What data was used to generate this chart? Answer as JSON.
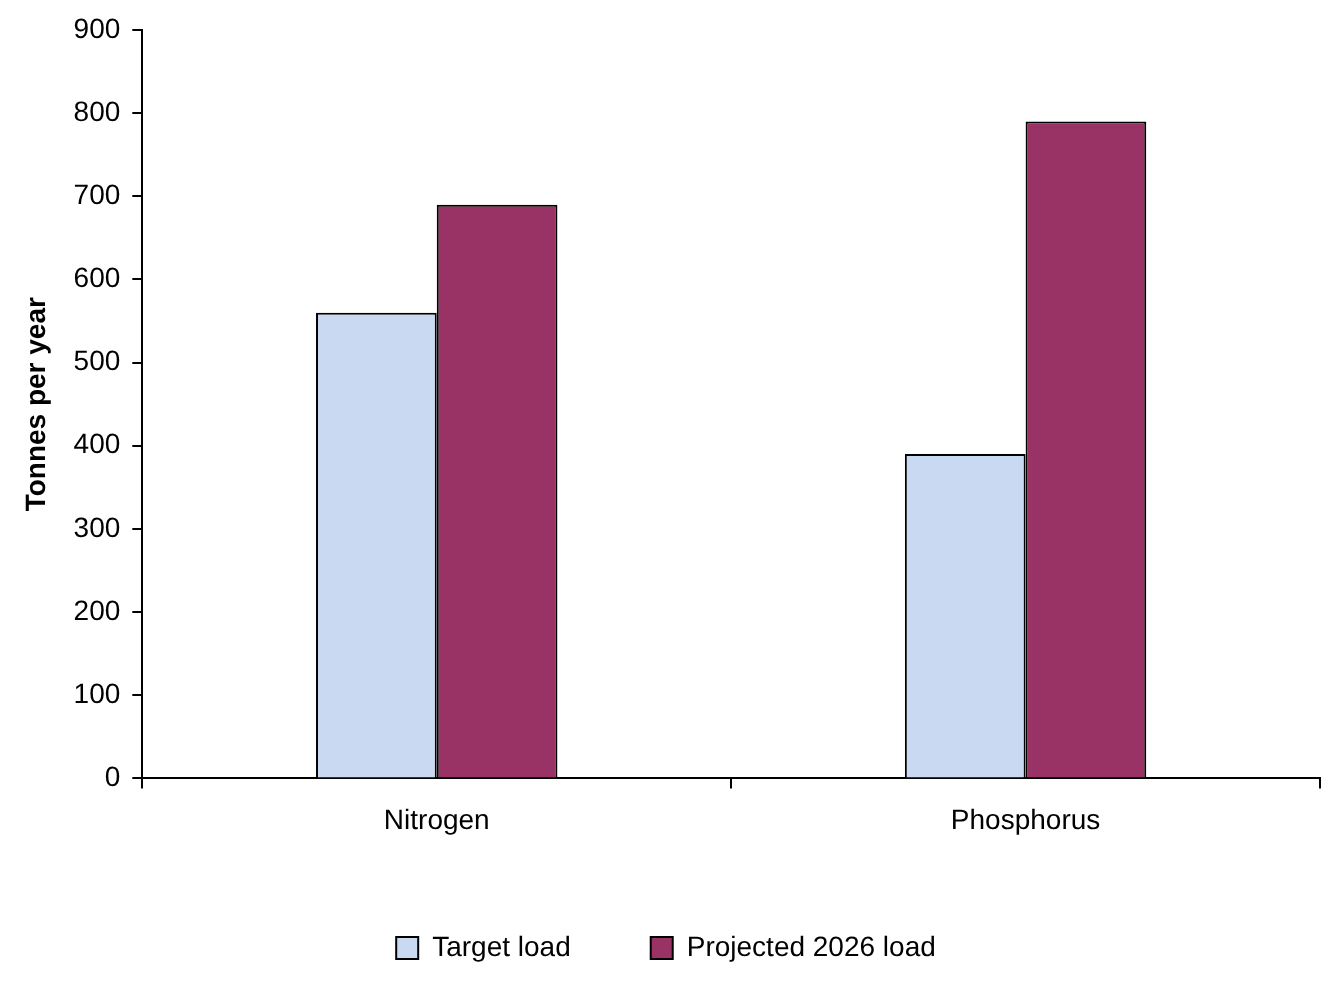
{
  "chart_data": {
    "type": "bar",
    "ylabel": "Tonnes per year",
    "categories": [
      "Nitrogen",
      "Phosphorus"
    ],
    "series": [
      {
        "name": "Target load",
        "color": "#c9d9f2",
        "values": [
          560,
          390
        ]
      },
      {
        "name": "Projected 2026 load",
        "color": "#993366",
        "values": [
          690,
          790
        ]
      }
    ],
    "ylim": [
      0,
      900
    ],
    "yticks": [
      0,
      100,
      200,
      300,
      400,
      500,
      600,
      700,
      800,
      900
    ],
    "grid": false,
    "legend": "bottom"
  }
}
